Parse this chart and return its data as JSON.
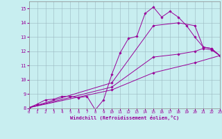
{
  "title": "",
  "xlabel": "Windchill (Refroidissement éolien,°C)",
  "background_color": "#c8eef0",
  "line_color": "#990099",
  "xlim": [
    0,
    23
  ],
  "ylim": [
    8,
    15.5
  ],
  "xticks": [
    0,
    1,
    2,
    3,
    4,
    5,
    6,
    7,
    8,
    9,
    10,
    11,
    12,
    13,
    14,
    15,
    16,
    17,
    18,
    19,
    20,
    21,
    22,
    23
  ],
  "yticks": [
    8,
    9,
    10,
    11,
    12,
    13,
    14,
    15
  ],
  "line1_x": [
    0,
    1,
    2,
    3,
    4,
    5,
    6,
    7,
    8,
    9,
    10,
    11,
    12,
    13,
    14,
    15,
    16,
    17,
    18,
    19,
    20,
    21,
    22,
    23
  ],
  "line1_y": [
    8.05,
    8.3,
    8.6,
    8.65,
    8.85,
    8.85,
    8.75,
    8.85,
    7.9,
    8.6,
    10.4,
    11.9,
    12.9,
    13.05,
    14.65,
    15.1,
    14.4,
    14.8,
    14.4,
    13.8,
    13.0,
    12.3,
    12.2,
    11.7
  ],
  "line2_x": [
    0,
    10,
    15,
    18,
    20,
    21,
    22,
    23
  ],
  "line2_y": [
    8.05,
    9.8,
    13.8,
    14.0,
    13.8,
    12.3,
    12.2,
    11.7
  ],
  "line3_x": [
    0,
    10,
    15,
    18,
    20,
    21,
    22,
    23
  ],
  "line3_y": [
    8.05,
    9.5,
    11.6,
    11.8,
    12.0,
    12.2,
    12.1,
    11.7
  ],
  "line4_x": [
    0,
    10,
    15,
    20,
    23
  ],
  "line4_y": [
    8.05,
    9.3,
    10.5,
    11.2,
    11.7
  ]
}
